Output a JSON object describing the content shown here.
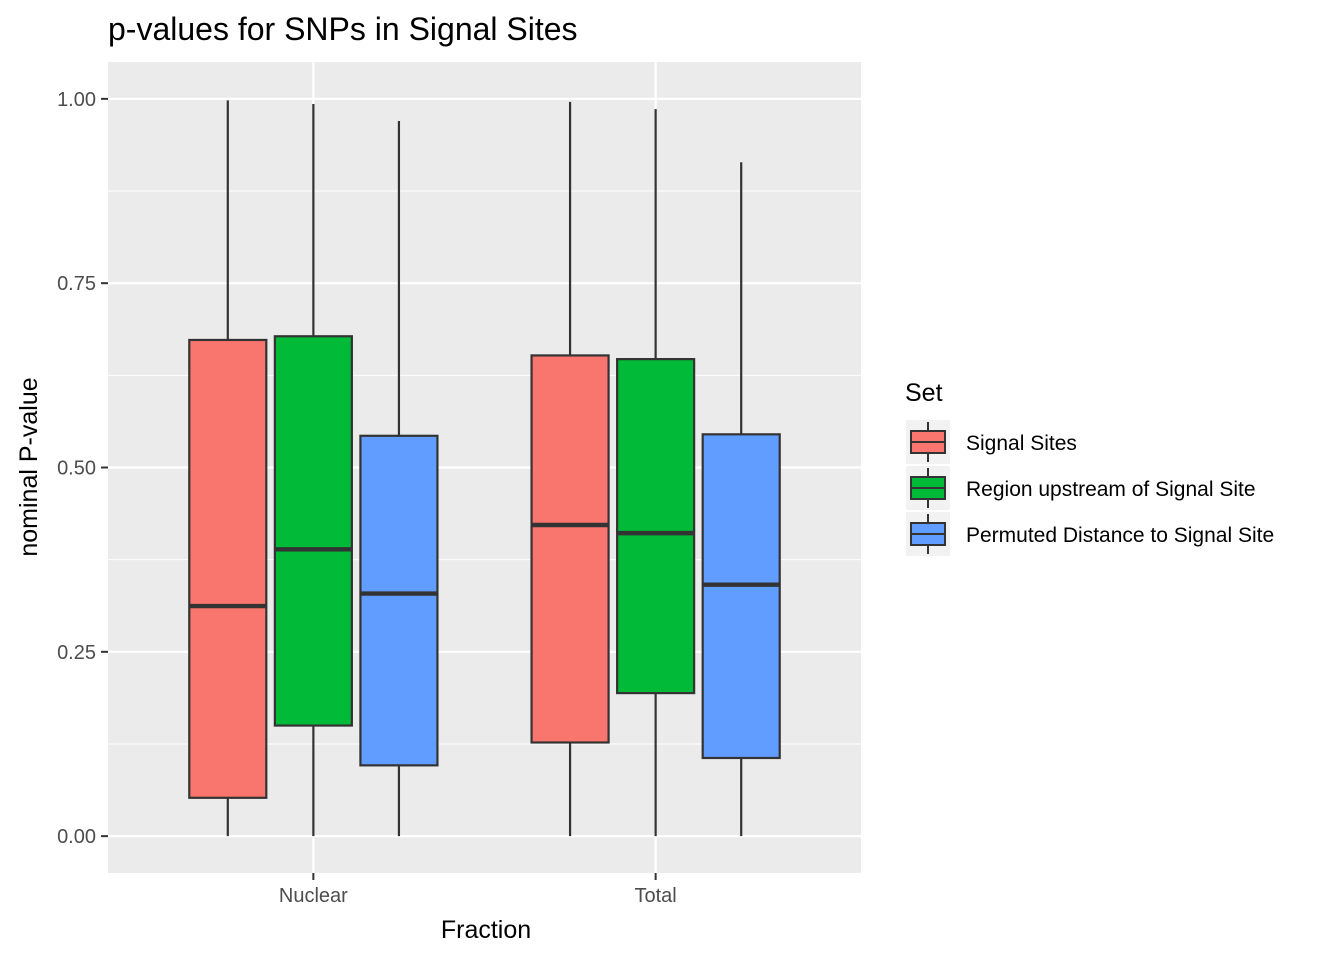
{
  "chart_data": {
    "type": "boxplot",
    "title": "p-values for SNPs in Signal Sites",
    "xlabel": "Fraction",
    "ylabel": "nominal P-value",
    "categories": [
      "Nuclear",
      "Total"
    ],
    "ylim": [
      -0.05,
      1.05
    ],
    "yticks": [
      0.0,
      0.25,
      0.5,
      0.75,
      1.0
    ],
    "ytick_labels": [
      "0.00",
      "0.25",
      "0.50",
      "0.75",
      "1.00"
    ],
    "grid": true,
    "legend": {
      "title": "Set",
      "position": "right"
    },
    "series": [
      {
        "name": "Signal Sites",
        "color": "#F8766D",
        "boxes": [
          {
            "min": 0.0,
            "q1": 0.052,
            "median": 0.312,
            "q3": 0.673,
            "max": 0.998
          },
          {
            "min": 0.0,
            "q1": 0.127,
            "median": 0.422,
            "q3": 0.652,
            "max": 0.996
          }
        ]
      },
      {
        "name": "Region upstream of Signal Site",
        "color": "#00BA38",
        "boxes": [
          {
            "min": 0.0,
            "q1": 0.15,
            "median": 0.389,
            "q3": 0.678,
            "max": 0.993
          },
          {
            "min": 0.0,
            "q1": 0.194,
            "median": 0.411,
            "q3": 0.647,
            "max": 0.986
          }
        ]
      },
      {
        "name": "Permuted Distance to Signal Site",
        "color": "#619CFF",
        "boxes": [
          {
            "min": 0.0,
            "q1": 0.096,
            "median": 0.329,
            "q3": 0.543,
            "max": 0.97
          },
          {
            "min": 0.0,
            "q1": 0.106,
            "median": 0.341,
            "q3": 0.545,
            "max": 0.914
          }
        ]
      }
    ]
  }
}
